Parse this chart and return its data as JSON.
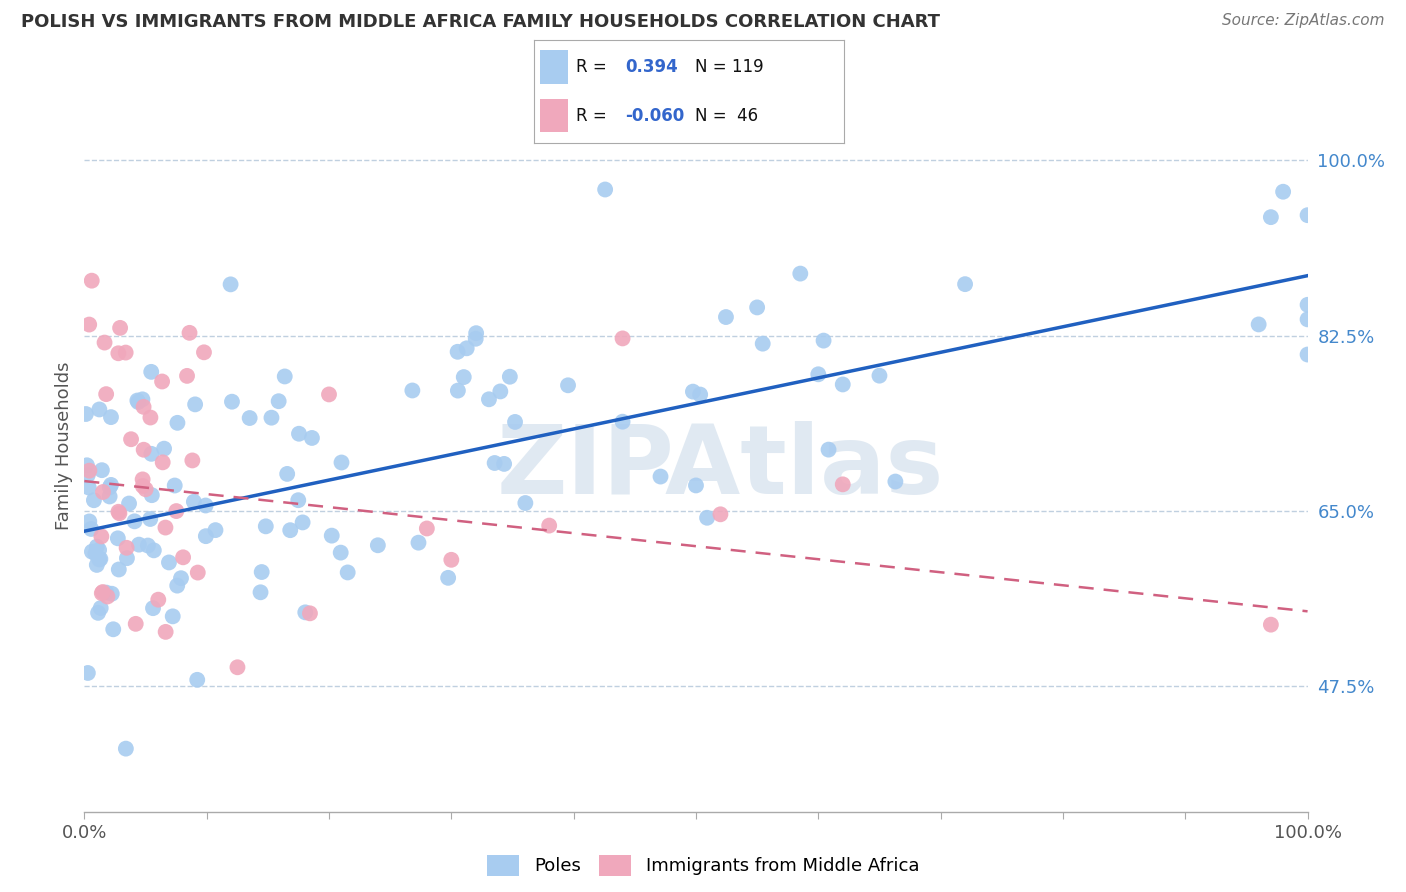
{
  "title": "POLISH VS IMMIGRANTS FROM MIDDLE AFRICA FAMILY HOUSEHOLDS CORRELATION CHART",
  "source": "Source: ZipAtlas.com",
  "ylabel": "Family Households",
  "blue_color": "#A8CCF0",
  "pink_color": "#F0A8BC",
  "blue_line_color": "#2060C0",
  "pink_line_color": "#D06080",
  "grid_color": "#C0D0E0",
  "poles_label": "Poles",
  "immigrants_label": "Immigrants from Middle Africa",
  "watermark": "ZIPAtlas",
  "xlim": [
    0.0,
    1.0
  ],
  "ylim": [
    0.35,
    1.08
  ],
  "right_yticks": [
    0.475,
    0.65,
    0.825,
    1.0
  ],
  "right_yticklabels": [
    "47.5%",
    "65.0%",
    "82.5%",
    "100.0%"
  ],
  "blue_intercept": 0.63,
  "blue_slope": 0.255,
  "pink_intercept": 0.68,
  "pink_slope": -0.13
}
